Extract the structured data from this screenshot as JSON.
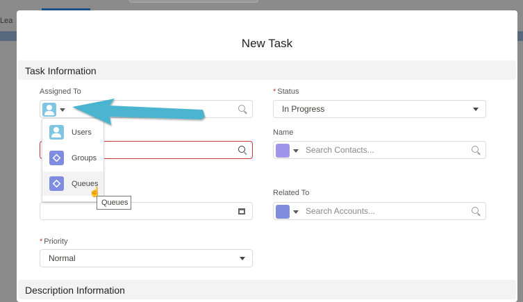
{
  "background": {
    "tab_text": "Lea"
  },
  "modal": {
    "title": "New Task"
  },
  "sections": {
    "task_info": "Task Information",
    "description_info": "Description Information"
  },
  "fields": {
    "assigned_to": {
      "label": "Assigned To",
      "icon": "user-icon"
    },
    "status": {
      "label": "Status",
      "value": "In Progress",
      "required": true
    },
    "name": {
      "label": "Name",
      "placeholder": "Search Contacts...",
      "icon": "contact-card-icon"
    },
    "related_to": {
      "label": "Related To",
      "placeholder": "Search Accounts...",
      "icon": "account-icon"
    },
    "priority": {
      "label": "Priority",
      "value": "Normal",
      "required": true
    }
  },
  "dropdown": {
    "items": [
      {
        "label": "Users",
        "icon": "user-icon"
      },
      {
        "label": "Groups",
        "icon": "stack-icon"
      },
      {
        "label": "Queues",
        "icon": "stack-icon"
      }
    ]
  },
  "tooltip": "Queues",
  "required_mark": "*",
  "colors": {
    "user": "#7fc4e3",
    "stack": "#7f8de1",
    "contact": "#a094ed",
    "account": "#7f8de1",
    "error": "#c23934",
    "arrow": "#4bb5cf"
  }
}
